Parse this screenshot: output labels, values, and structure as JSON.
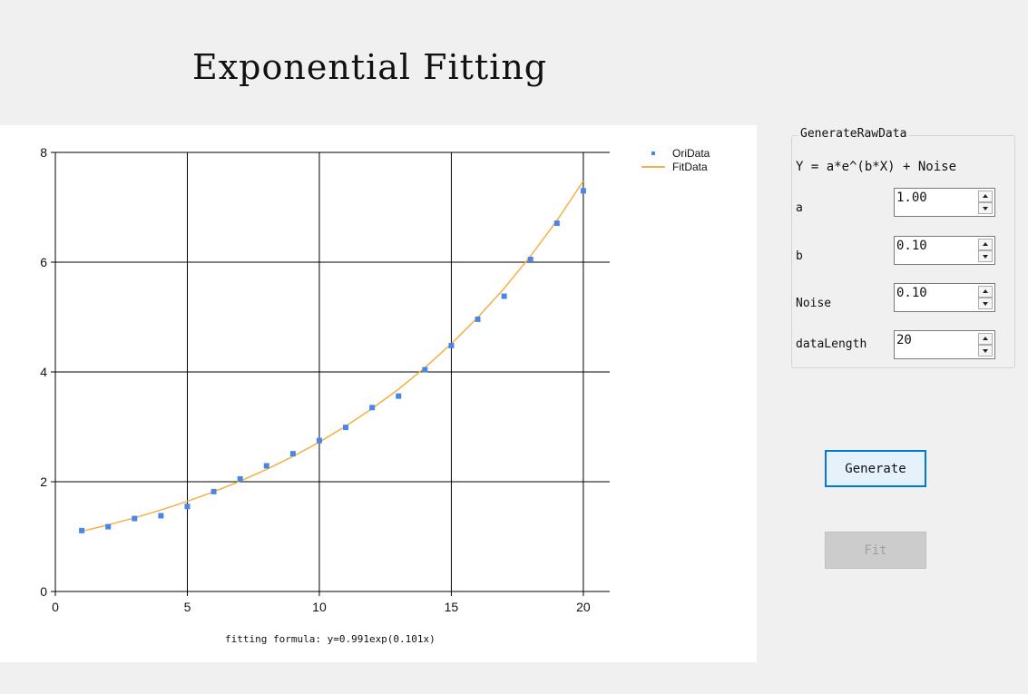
{
  "window": {
    "title": "Exponential Fitting"
  },
  "colors": {
    "background": "#f0f0f0",
    "chart_background": "#ffffff",
    "points": "#4a86e8",
    "fit_line": "#f5b041",
    "grid": "#000000",
    "accent": "#0078d7"
  },
  "chart_data": {
    "type": "scatter",
    "title": "",
    "xlabel": "fitting formula: y=0.991exp(0.101x)",
    "ylabel": "",
    "xlim": [
      0,
      21
    ],
    "ylim": [
      0,
      8
    ],
    "xticks": [
      0,
      5,
      10,
      15,
      20
    ],
    "yticks": [
      0,
      2,
      4,
      6,
      8
    ],
    "grid": true,
    "legend_position": "top-right",
    "series": [
      {
        "name": "OriData",
        "kind": "points",
        "x": [
          1,
          2,
          3,
          4,
          5,
          6,
          7,
          8,
          9,
          10,
          11,
          12,
          13,
          14,
          15,
          16,
          17,
          18,
          19,
          20
        ],
        "y": [
          1.11,
          1.18,
          1.33,
          1.38,
          1.55,
          1.82,
          2.05,
          2.29,
          2.51,
          2.75,
          2.99,
          3.35,
          3.56,
          4.04,
          4.48,
          4.96,
          5.38,
          6.05,
          6.71,
          7.3
        ]
      },
      {
        "name": "FitData",
        "kind": "line",
        "x": [
          1,
          2,
          3,
          4,
          5,
          6,
          7,
          8,
          9,
          10,
          11,
          12,
          13,
          14,
          15,
          16,
          17,
          18,
          19,
          20
        ],
        "y": [
          1.096,
          1.213,
          1.342,
          1.485,
          1.643,
          1.817,
          2.011,
          2.224,
          2.461,
          2.722,
          3.012,
          3.332,
          3.686,
          4.078,
          4.512,
          4.992,
          5.522,
          6.11,
          6.759,
          7.478
        ]
      }
    ]
  },
  "generate_group": {
    "title": "GenerateRawData",
    "formula": "Y = a*e^(b*X) + Noise",
    "fields": [
      {
        "label": "a",
        "value": "1.00"
      },
      {
        "label": "b",
        "value": "0.10"
      },
      {
        "label": "Noise",
        "value": "0.10"
      },
      {
        "label": "dataLength",
        "value": "20"
      }
    ]
  },
  "buttons": {
    "generate_label": "Generate",
    "fit_label": "Fit"
  }
}
